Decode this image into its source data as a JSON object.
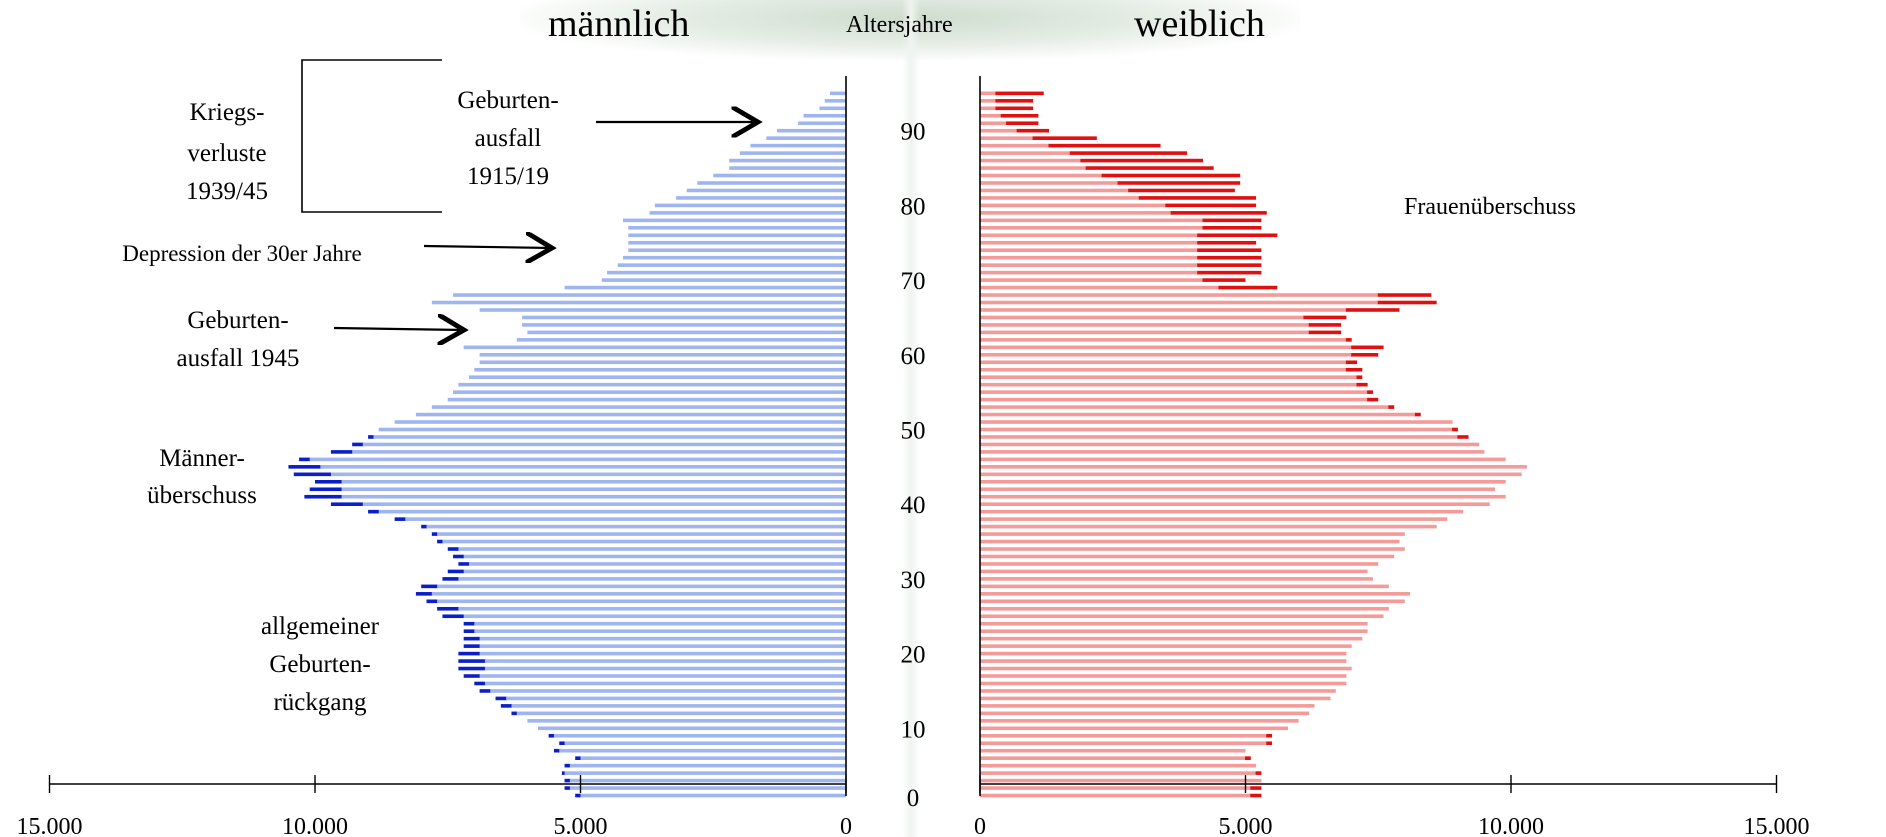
{
  "header": {
    "left_title": "männlich",
    "center_title": "Altersjahre",
    "right_title": "weiblich"
  },
  "colors": {
    "male_base": "#9fb5f0",
    "male_surplus": "#0b1fc8",
    "female_base": "#f49a98",
    "female_surplus": "#e01010",
    "axis": "#000000"
  },
  "annotations": {
    "kriegsverluste": [
      "Kriegs-",
      "verluste",
      "1939/45"
    ],
    "geburtenausfall_1915": [
      "Geburten-",
      "ausfall",
      "1915/19"
    ],
    "depression": "Depression der 30er Jahre",
    "geburtenausfall_1945": [
      "Geburten-",
      "ausfall 1945"
    ],
    "maenner_ueberschuss": [
      "Männer-",
      "überschuss"
    ],
    "geburtenrueckgang": [
      "allgemeiner",
      "Geburten-",
      "rückgang"
    ],
    "frauen_ueberschuss": "Frauenüberschuss"
  },
  "chart_data": {
    "type": "bar",
    "orientation": "horizontal",
    "title": "",
    "xlabel": "",
    "ylabel": "Altersjahre",
    "x_ticks_left": [
      "15.000",
      "10.000",
      "5.000",
      "0"
    ],
    "x_ticks_right": [
      "0",
      "5.000",
      "10.000",
      "15.000"
    ],
    "x_tick_values": [
      0,
      5000,
      10000,
      15000
    ],
    "age_ticks": [
      "0",
      "10",
      "20",
      "30",
      "40",
      "50",
      "60",
      "70",
      "80",
      "90"
    ],
    "age_tick_values": [
      0,
      10,
      20,
      30,
      40,
      50,
      60,
      70,
      80,
      90
    ],
    "xlim": [
      0,
      15000
    ],
    "ylim": [
      0,
      95
    ],
    "ages": [
      1,
      2,
      3,
      4,
      5,
      6,
      7,
      8,
      9,
      10,
      11,
      12,
      13,
      14,
      15,
      16,
      17,
      18,
      19,
      20,
      21,
      22,
      23,
      24,
      25,
      26,
      27,
      28,
      29,
      30,
      31,
      32,
      33,
      34,
      35,
      36,
      37,
      38,
      39,
      40,
      41,
      42,
      43,
      44,
      45,
      46,
      47,
      48,
      49,
      50,
      51,
      52,
      53,
      54,
      55,
      56,
      57,
      58,
      59,
      60,
      61,
      62,
      63,
      64,
      65,
      66,
      67,
      68,
      69,
      70,
      71,
      72,
      73,
      74,
      75,
      76,
      77,
      78,
      79,
      80,
      81,
      82,
      83,
      84,
      85,
      86,
      87,
      88,
      89,
      90,
      91,
      92,
      93,
      94,
      95
    ],
    "series": [
      {
        "name": "männlich",
        "values": [
          5100,
          5300,
          5300,
          5350,
          5300,
          5100,
          5500,
          5400,
          5600,
          5800,
          6000,
          6300,
          6500,
          6600,
          6900,
          7000,
          7200,
          7300,
          7300,
          7300,
          7200,
          7200,
          7200,
          7200,
          7600,
          7700,
          7900,
          8100,
          8000,
          7600,
          7500,
          7300,
          7400,
          7500,
          7700,
          7800,
          8000,
          8500,
          9000,
          9700,
          10200,
          10100,
          10000,
          10400,
          10500,
          10300,
          9700,
          9300,
          9000,
          8800,
          8500,
          8100,
          7800,
          7500,
          7400,
          7300,
          7100,
          7000,
          6900,
          6900,
          7200,
          6200,
          6000,
          6100,
          6100,
          6900,
          7800,
          7400,
          5300,
          4600,
          4500,
          4300,
          4200,
          4100,
          4100,
          4100,
          4100,
          4200,
          3700,
          3600,
          3200,
          3000,
          2800,
          2500,
          2200,
          2200,
          2000,
          1800,
          1500,
          1300,
          900,
          800,
          500,
          400,
          300
        ]
      },
      {
        "name": "weiblich",
        "values": [
          5300,
          5300,
          5300,
          5300,
          5200,
          5100,
          5000,
          5500,
          5500,
          5800,
          6000,
          6200,
          6300,
          6600,
          6700,
          6900,
          6900,
          7000,
          6900,
          6900,
          7000,
          7200,
          7300,
          7300,
          7600,
          7700,
          8000,
          8100,
          7700,
          7400,
          7300,
          7500,
          7800,
          8000,
          7900,
          8000,
          8600,
          8800,
          9100,
          9600,
          9900,
          9700,
          9900,
          10200,
          10300,
          9900,
          9500,
          9400,
          9200,
          9000,
          8900,
          8300,
          7800,
          7500,
          7400,
          7300,
          7200,
          7200,
          7100,
          7500,
          7600,
          7000,
          6800,
          6800,
          6900,
          7900,
          8600,
          8500,
          5600,
          5000,
          5300,
          5300,
          5300,
          5300,
          5200,
          5600,
          5300,
          5300,
          5400,
          5200,
          5200,
          4800,
          4900,
          4900,
          4400,
          4200,
          3900,
          3400,
          2200,
          1300,
          1100,
          1100,
          1000,
          1000,
          1200
        ]
      },
      {
        "name": "Männerüberschuss",
        "values": [
          5000,
          5200,
          5200,
          5300,
          5200,
          5000,
          5400,
          5300,
          5500,
          5800,
          6000,
          6200,
          6300,
          6400,
          6700,
          6800,
          6900,
          6800,
          6800,
          6900,
          6900,
          6900,
          7000,
          7000,
          7200,
          7300,
          7700,
          7800,
          7700,
          7300,
          7200,
          7100,
          7200,
          7300,
          7600,
          7700,
          7900,
          8300,
          8800,
          9100,
          9500,
          9500,
          9500,
          9700,
          9900,
          10100,
          9300,
          9100,
          8900,
          8800,
          8500,
          8100,
          7800,
          7500,
          7400,
          7300,
          7100,
          7000,
          6900,
          6900,
          7200,
          6200,
          6000,
          6100,
          6100,
          6900,
          7800,
          7400,
          5300,
          4600,
          4500,
          4300,
          4200,
          4100,
          4100,
          4100,
          4100,
          4200,
          3700,
          3600,
          3200,
          3000,
          2800,
          2500,
          2200,
          2200,
          2000,
          1800,
          1500,
          1300,
          900,
          800,
          500,
          400,
          300
        ]
      },
      {
        "name": "Frauenüberschuss",
        "values": [
          5100,
          5100,
          5300,
          5200,
          5200,
          5000,
          5000,
          5400,
          5400,
          5800,
          6000,
          6200,
          6300,
          6600,
          6700,
          6900,
          6900,
          7000,
          6900,
          6900,
          7000,
          7200,
          7300,
          7300,
          7600,
          7700,
          8000,
          8100,
          7700,
          7400,
          7300,
          7500,
          7800,
          8000,
          7900,
          8000,
          8600,
          8800,
          9100,
          9600,
          9900,
          9700,
          9900,
          10200,
          10300,
          9900,
          9500,
          9400,
          9000,
          8900,
          8900,
          8200,
          7700,
          7300,
          7300,
          7100,
          7100,
          6900,
          6900,
          7000,
          7000,
          6900,
          6200,
          6200,
          6100,
          6900,
          7500,
          7500,
          4500,
          4200,
          4100,
          4100,
          4100,
          4100,
          4100,
          4100,
          4200,
          4200,
          3600,
          3500,
          3000,
          2800,
          2600,
          2300,
          2000,
          1900,
          1700,
          1300,
          1000,
          700,
          500,
          400,
          300,
          300,
          300
        ]
      }
    ],
    "legend": "none",
    "grid": false
  }
}
